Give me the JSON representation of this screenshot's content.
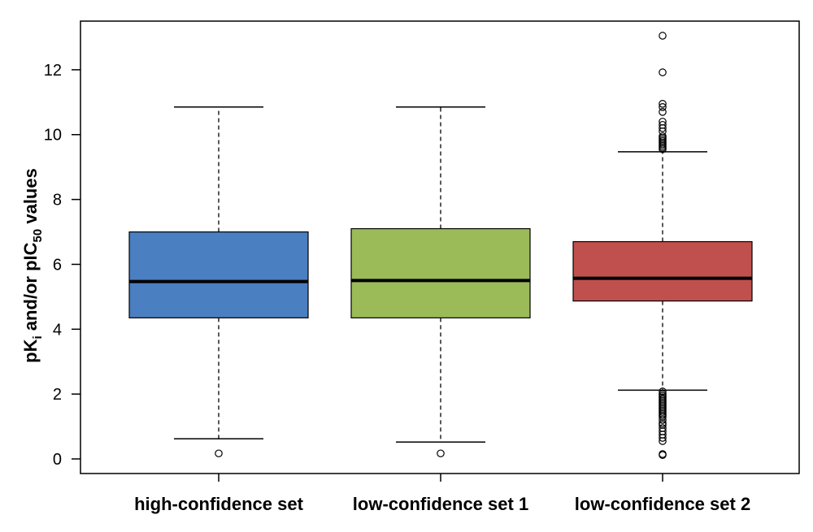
{
  "chart_data": {
    "type": "boxplot",
    "ylabel": {
      "prefix": "pK",
      "sub1": "i",
      "middle": " and/or pIC",
      "sub2": "50",
      "suffix": " values"
    },
    "xlabel": "",
    "ylim": [
      -0.45,
      13.5
    ],
    "yticks": [
      0,
      2,
      4,
      6,
      8,
      10,
      12
    ],
    "grid": false,
    "categories": [
      "high-confidence set",
      "low-confidence set 1",
      "low-confidence set 2"
    ],
    "boxes": [
      {
        "category": "high-confidence set",
        "color": "#4a7fc1",
        "whisker_low": 0.62,
        "q1": 4.35,
        "median": 5.47,
        "q3": 7.0,
        "whisker_high": 10.85,
        "outliers": [
          0.17
        ]
      },
      {
        "category": "low-confidence set 1",
        "color": "#9bbb59",
        "whisker_low": 0.52,
        "q1": 4.35,
        "median": 5.5,
        "q3": 7.1,
        "whisker_high": 10.85,
        "outliers": [
          0.17
        ]
      },
      {
        "category": "low-confidence set 2",
        "color": "#c0504d",
        "whisker_low": 2.12,
        "q1": 4.87,
        "median": 5.57,
        "q3": 6.7,
        "whisker_high": 9.47,
        "outliers": [
          13.05,
          11.92,
          10.95,
          10.85,
          10.7,
          10.4,
          10.3,
          10.2,
          10.1,
          9.95,
          9.9,
          9.85,
          9.8,
          9.75,
          9.7,
          9.65,
          9.6,
          9.55,
          2.08,
          2.0,
          1.95,
          1.9,
          1.85,
          1.8,
          1.75,
          1.7,
          1.65,
          1.6,
          1.55,
          1.5,
          1.45,
          1.4,
          1.35,
          1.3,
          1.2,
          1.1,
          1.05,
          0.95,
          0.85,
          0.75,
          0.65,
          0.55,
          0.15,
          0.12
        ]
      }
    ]
  }
}
